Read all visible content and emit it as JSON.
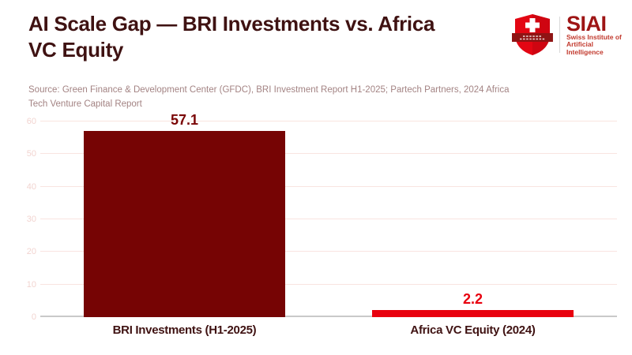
{
  "header": {
    "title_lines": [
      "AI Scale Gap — BRI Investments vs. Africa",
      "VC Equity"
    ],
    "title_color": "#3f1212",
    "logo": {
      "shield_icon": "swiss-shield-icon",
      "wordmark": "SIAI",
      "subtitle_lines": [
        "Swiss Institute of",
        "Artificial Intelligence"
      ],
      "brand_red": "#e30613",
      "ribbon_red": "#8f1414",
      "wordmark_color": "#9e1515",
      "subtitle_color": "#c23a2e"
    }
  },
  "source": {
    "lines": [
      "Source: Green Finance & Development Center (GFDC), BRI Investment Report H1-2025; Partech Partners, 2024 Africa",
      "Tech Venture Capital Report"
    ],
    "color": "#a38383"
  },
  "chart_data": {
    "type": "bar",
    "title": "AI Scale Gap — BRI Investments vs. Africa VC Equity",
    "categories": [
      "BRI Investments (H1-2025)",
      "Africa VC Equity (2024)"
    ],
    "values": [
      57.1,
      2.2
    ],
    "value_labels": [
      "57.1",
      "2.2"
    ],
    "bar_colors": [
      "#760404",
      "#e8000e"
    ],
    "value_label_colors": [
      "#7a0505",
      "#e8000e"
    ],
    "xlabel": "",
    "ylabel": "",
    "ylim": [
      0,
      60
    ],
    "ytick_step": 10,
    "grid": true,
    "gridline_color": "#f9e4e0",
    "zero_line_color": "#c9c9c9",
    "tick_label_color": "#f2d4d0",
    "legend": false
  }
}
